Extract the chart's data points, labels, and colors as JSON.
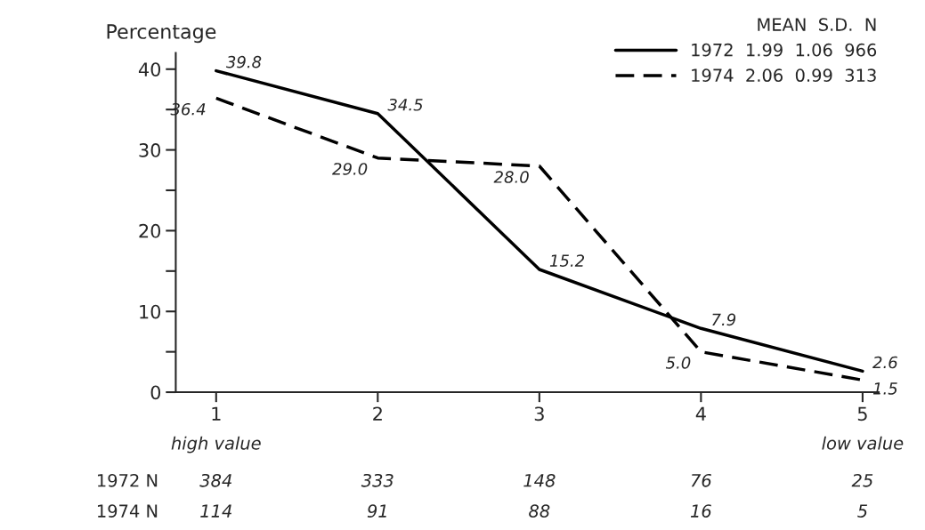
{
  "chart_data": {
    "type": "line",
    "ylabel": "Percentage",
    "categories": [
      "1",
      "2",
      "3",
      "4",
      "5"
    ],
    "series": [
      {
        "name": "1972  1.99  1.06  966",
        "color": "#000000",
        "line_style": "solid",
        "values": [
          39.8,
          34.5,
          15.2,
          7.9,
          2.6
        ],
        "value_labels": [
          "39.8",
          "34.5",
          "15.2",
          "7.9",
          "2.6"
        ]
      },
      {
        "name": "1974  2.06  0.99  313",
        "color": "#000000",
        "line_style": "dashed",
        "values": [
          36.4,
          29.0,
          28.0,
          5.0,
          1.5
        ],
        "value_labels": [
          "36.4",
          "29.0",
          "28.0",
          "5.0",
          "1.5"
        ]
      }
    ],
    "legend_title": "MEAN  S.D.  N",
    "legend": "top right",
    "ylim": [
      0,
      42
    ],
    "yticks": [
      0,
      {
        "value": 5,
        "label": null
      },
      10,
      {
        "value": 15,
        "label": null
      },
      20,
      {
        "value": 25,
        "label": null
      },
      30,
      {
        "value": 35,
        "label": null
      },
      40
    ],
    "grid": false,
    "marker": "none",
    "annotations": [
      "high value",
      "low value",
      "1972 N",
      "384",
      "333",
      "148",
      "76",
      "25",
      "1974 N",
      "114",
      "91",
      "88",
      "16",
      "5"
    ]
  }
}
